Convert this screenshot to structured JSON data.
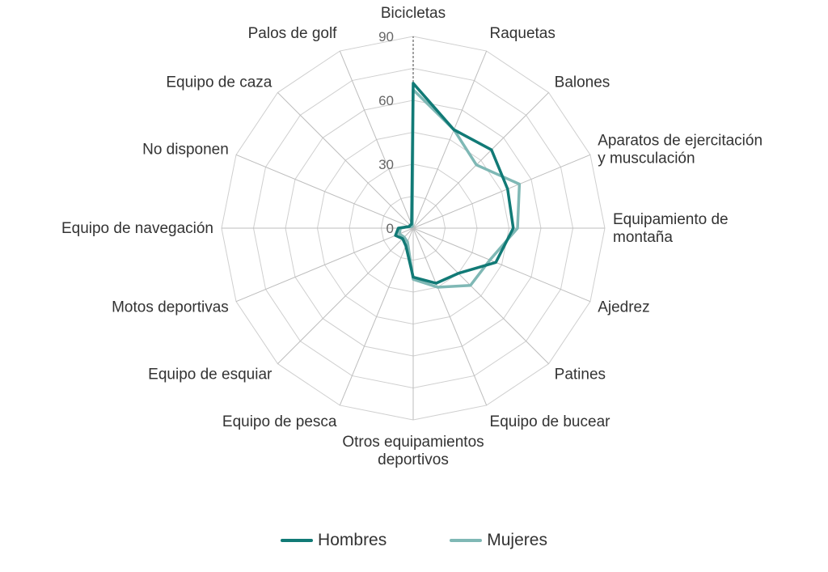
{
  "chart_data": {
    "type": "radar",
    "title": "",
    "categories": [
      "Bicicletas",
      "Raquetas",
      "Balones",
      [
        "Aparatos de ejercitación",
        "y musculación"
      ],
      [
        "Equipamiento de",
        "montaña"
      ],
      "Ajedrez",
      "Patines",
      "Equipo de bucear",
      [
        "Otros equipamientos",
        "deportivos"
      ],
      "Equipo de pesca",
      "Equipo de esquiar",
      "Motos deportivas",
      "Equipo de navegación",
      "No disponen",
      "Equipo de caza",
      "Palos de golf"
    ],
    "r_ticks": [
      0,
      30,
      60,
      90
    ],
    "r_range": [
      0,
      90
    ],
    "grid": true,
    "legend_position": "bottom",
    "series": [
      {
        "name": "Hombres",
        "color": "#117a76",
        "values": [
          68,
          50,
          52,
          48,
          47,
          42,
          30,
          28,
          23,
          9,
          7,
          9,
          7,
          2,
          2,
          2
        ]
      },
      {
        "name": "Mujeres",
        "color": "#7fb8b5",
        "values": [
          65,
          50,
          42,
          54,
          49,
          39,
          38,
          30,
          24,
          7,
          6,
          7,
          6,
          2,
          1,
          1
        ]
      }
    ]
  }
}
